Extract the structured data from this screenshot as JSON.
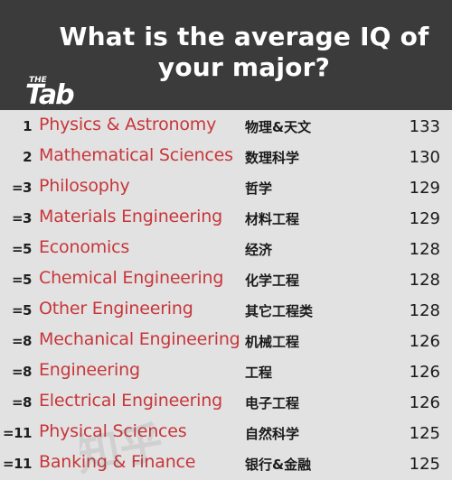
{
  "title": "What is the average IQ of your major?",
  "logo_text": "THE Tab",
  "colors": {
    "header_bg": "#3b3b3b",
    "body_bg": "#e2e2e2",
    "major_text": "#c8363a",
    "text": "#1a1a1a"
  },
  "rows": [
    {
      "rank": "1",
      "major": "Physics & Astronomy",
      "chinese": "物理&天文",
      "iq": "133"
    },
    {
      "rank": "2",
      "major": "Mathematical Sciences",
      "chinese": "数理科学",
      "iq": "130"
    },
    {
      "rank": "=3",
      "major": "Philosophy",
      "chinese": "哲学",
      "iq": "129"
    },
    {
      "rank": "=3",
      "major": "Materials Engineering",
      "chinese": "材料工程",
      "iq": "129"
    },
    {
      "rank": "=5",
      "major": "Economics",
      "chinese": "经济",
      "iq": "128"
    },
    {
      "rank": "=5",
      "major": "Chemical Engineering",
      "chinese": "化学工程",
      "iq": "128"
    },
    {
      "rank": "=5",
      "major": "Other Engineering",
      "chinese": "其它工程类",
      "iq": "128"
    },
    {
      "rank": "=8",
      "major": "Mechanical Engineering",
      "chinese": "机械工程",
      "iq": "126"
    },
    {
      "rank": "=8",
      "major": "Engineering",
      "chinese": "工程",
      "iq": "126"
    },
    {
      "rank": "=8",
      "major": "Electrical Engineering",
      "chinese": "电子工程",
      "iq": "126"
    },
    {
      "rank": "=11",
      "major": "Physical Sciences",
      "chinese": "自然科学",
      "iq": "125"
    },
    {
      "rank": "=11",
      "major": "Banking & Finance",
      "chinese": "银行&金融",
      "iq": "125"
    }
  ]
}
